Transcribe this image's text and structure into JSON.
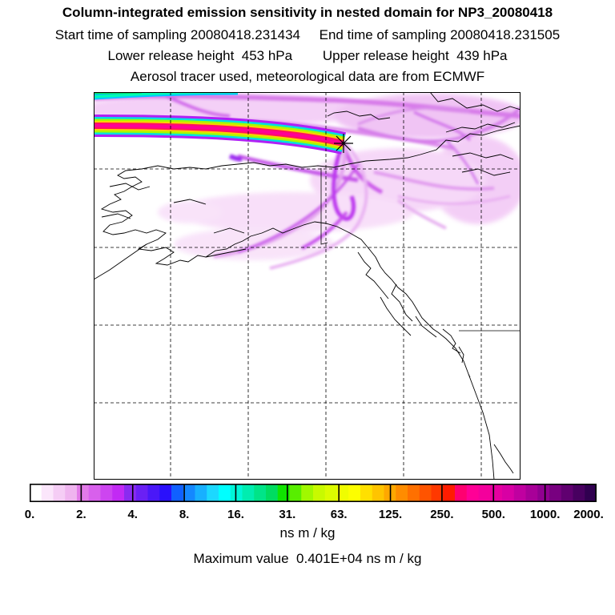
{
  "header": {
    "title": "Column-integrated emission sensitivity in nested domain for NP3_20080418",
    "sampling": "Start time of sampling 20080418.231434     End time of sampling 20080418.231505",
    "release": "Lower release height  453 hPa        Upper release height  439 hPa",
    "tracer": "Aerosol tracer used, meteorological data are from ECMWF"
  },
  "map": {
    "region": "Alaska / western Canada / US Pacific Northwest",
    "release_marker_icon": "asterisk-release-point-icon",
    "graticule": "dashed"
  },
  "colorbar": {
    "tick_labels": [
      "0.",
      "2.",
      "4.",
      "8.",
      "16.",
      "31.",
      "63.",
      "125.",
      "250.",
      "500.",
      "1000.",
      "2000."
    ],
    "units": "ns m / kg",
    "colors": [
      "#ffffff",
      "#fbe6fb",
      "#f5cdf5",
      "#efb4ef",
      "#e27be8",
      "#d860ec",
      "#cd45f0",
      "#c22af4",
      "#8a2bf0",
      "#6a20f4",
      "#4a18f8",
      "#2a10fc",
      "#1060ff",
      "#1488ff",
      "#18b0ff",
      "#1cd8ff",
      "#00ffff",
      "#00f6d8",
      "#00edb0",
      "#00e488",
      "#00dc60",
      "#10e400",
      "#58ee00",
      "#a0f800",
      "#c8fa00",
      "#dcfc00",
      "#f0fd00",
      "#fdfe00",
      "#ffe000",
      "#ffc400",
      "#ffa800",
      "#ff8c00",
      "#ff7000",
      "#ff5400",
      "#ff3800",
      "#ff1c00",
      "#ff0070",
      "#ff0096",
      "#f4009c",
      "#e600a0",
      "#d800a4",
      "#c000a0",
      "#a80098",
      "#900090",
      "#780080",
      "#600070",
      "#480060",
      "#300050"
    ]
  },
  "max_value_text": "Maximum value  0.401E+04 ns m / kg"
}
